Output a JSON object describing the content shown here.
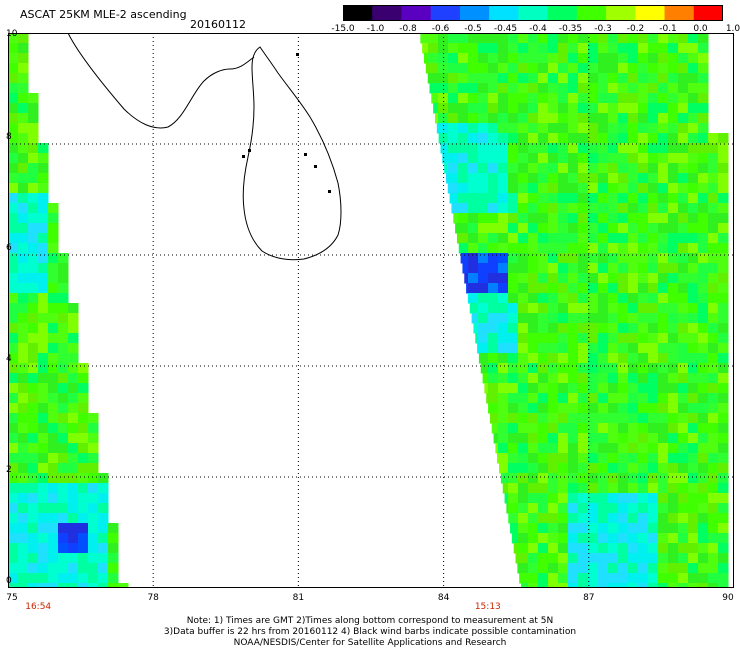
{
  "header": {
    "title": "ASCAT 25KM MLE-2 ascending",
    "date": "20160112"
  },
  "colorbar": {
    "labels": [
      "-15.0",
      "-1.0",
      "-0.8",
      "-0.6",
      "-0.5",
      "-0.45",
      "-0.4",
      "-0.35",
      "-0.3",
      "-0.2",
      "-0.1",
      "0.0",
      "1.0"
    ],
    "colors": [
      "#000000",
      "#3a0070",
      "#5a00c0",
      "#2040ff",
      "#0090ff",
      "#00e0ff",
      "#00ffc0",
      "#00ff60",
      "#40ff00",
      "#a0ff00",
      "#ffff00",
      "#ff8000",
      "#ff0000"
    ]
  },
  "map": {
    "lon_range": [
      75,
      90
    ],
    "lat_range": [
      0,
      10
    ],
    "x_ticks": [
      "75",
      "78",
      "81",
      "84",
      "87",
      "90"
    ],
    "y_ticks": [
      "0",
      "2",
      "4",
      "6",
      "8",
      "10"
    ],
    "times": [
      "16:54",
      "15:13"
    ],
    "grid": true,
    "swaths": [
      {
        "name": "west",
        "edge": [
          [
            77.3,
            0
          ],
          [
            75.2,
            10
          ]
        ]
      },
      {
        "name": "east",
        "edge": [
          [
            85.6,
            0
          ],
          [
            83.5,
            10
          ]
        ]
      }
    ]
  },
  "notes": {
    "line1": "Note: 1) Times are GMT 2)Times along bottom correspond to measurement at 5N",
    "line2": "3)Data buffer is 22 hrs from 20160112 4) Black wind barbs indicate possible contamination",
    "line3": "NOAA/NESDIS/Center for Satellite Applications and Research"
  }
}
